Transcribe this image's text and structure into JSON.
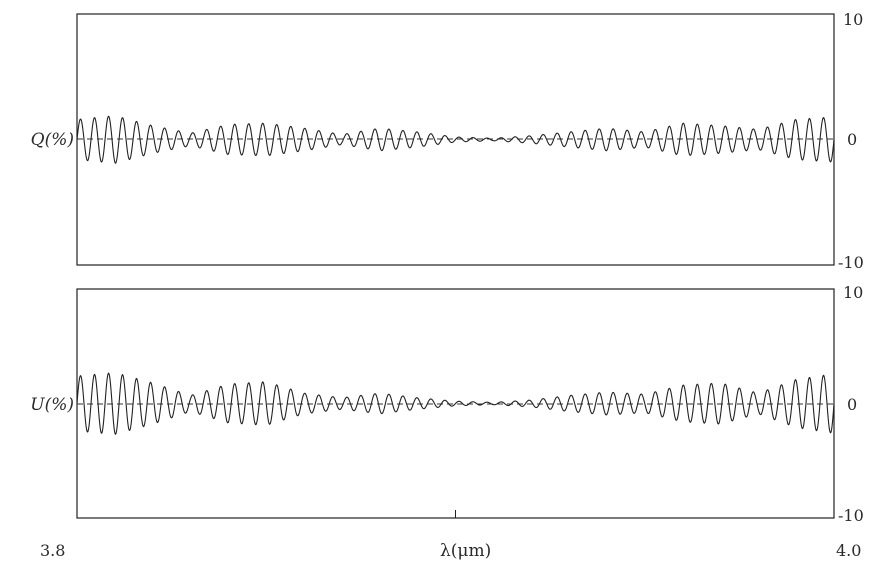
{
  "chart_data": [
    {
      "type": "line",
      "ylabel": "Q(%)",
      "ylim": [
        -10,
        10
      ],
      "xlim": [
        3.8,
        4.0
      ],
      "yticks": [
        "10",
        "0",
        "-10"
      ],
      "zero_line": "dashed",
      "description_of_series": "",
      "series": [
        {
          "x": [
            3.8,
            3.81,
            3.82,
            3.83,
            3.84,
            3.85,
            3.86,
            3.87,
            3.88,
            3.89,
            3.9,
            3.91,
            3.92,
            3.93,
            3.94,
            3.95,
            3.96,
            3.97,
            3.98,
            3.99,
            4.0
          ],
          "envelope": [
            1.6,
            1.9,
            1.1,
            0.5,
            1.2,
            1.3,
            0.9,
            0.4,
            0.9,
            0.6,
            0.2,
            0.1,
            0.3,
            0.6,
            0.9,
            0.6,
            1.3,
            1.1,
            0.8,
            1.6,
            1.8
          ]
        }
      ]
    },
    {
      "type": "line",
      "ylabel": "U(%)",
      "ylim": [
        -10,
        10
      ],
      "xlim": [
        3.8,
        4.0
      ],
      "yticks": [
        "10",
        "0",
        "-10"
      ],
      "zero_line": "dashed",
      "series": [
        {
          "x": [
            3.8,
            3.81,
            3.82,
            3.83,
            3.84,
            3.85,
            3.86,
            3.87,
            3.88,
            3.89,
            3.9,
            3.91,
            3.92,
            3.93,
            3.94,
            3.95,
            3.96,
            3.97,
            3.98,
            3.99,
            4.0
          ],
          "envelope": [
            2.4,
            2.7,
            1.8,
            0.7,
            1.7,
            1.9,
            0.9,
            0.5,
            0.9,
            0.5,
            0.2,
            0.1,
            0.3,
            0.7,
            1.0,
            0.8,
            1.6,
            1.8,
            0.9,
            2.1,
            2.6
          ]
        }
      ]
    }
  ],
  "xaxis": {
    "label": "λ(μm)",
    "left_tick": "3.8",
    "right_tick": "4.0",
    "mid_tick_value": 3.9
  }
}
